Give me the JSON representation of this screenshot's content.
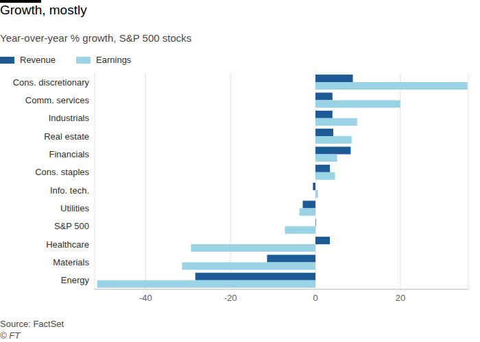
{
  "chart_data": {
    "type": "bar",
    "orientation": "horizontal",
    "title": "Growth, mostly",
    "subtitle": "Year-over-year % growth, S&P 500 stocks",
    "source": "Source: FactSet",
    "copyright": "© FT",
    "categories": [
      "Cons. discretionary",
      "Comm. services",
      "Industrials",
      "Real estate",
      "Financials",
      "Cons. staples",
      "Info. tech.",
      "Utilities",
      "S&P 500",
      "Healthcare",
      "Materials",
      "Energy"
    ],
    "series": [
      {
        "name": "Revenue",
        "color": "#1d5b97",
        "values": [
          8.8,
          4.0,
          4.0,
          4.2,
          8.3,
          3.4,
          -0.6,
          -3.0,
          0.1,
          3.4,
          -11.4,
          -28.3
        ]
      },
      {
        "name": "Earnings",
        "color": "#99d3e5",
        "values": [
          35.8,
          20.0,
          9.8,
          8.5,
          5.1,
          4.6,
          0.6,
          -3.8,
          -7.2,
          -29.3,
          -31.4,
          -51.4
        ]
      }
    ],
    "xlim": [
      -52,
      36
    ],
    "xticks": [
      -40,
      -20,
      0,
      20
    ],
    "grid": true,
    "legend": "top-left"
  }
}
